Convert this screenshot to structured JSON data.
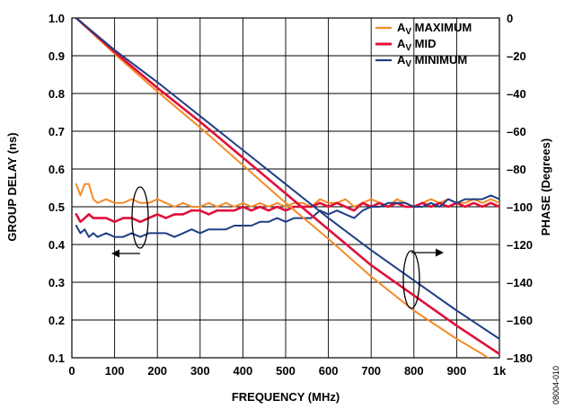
{
  "figure_id": "08004-010",
  "colors": {
    "maximum": "#f28c28",
    "mid": "#e0103a",
    "minimum": "#1f3f86",
    "grid": "#000000"
  },
  "chart_data": {
    "type": "line",
    "xlabel": "FREQUENCY (MHz)",
    "ylabel_left": "GROUP DELAY (ns)",
    "ylabel_right": "PHASE (Degrees)",
    "xlim": [
      0,
      1000
    ],
    "ylim_left": [
      0.1,
      1.0
    ],
    "ylim_right": [
      -180,
      0
    ],
    "x_ticks": [
      0,
      100,
      200,
      300,
      400,
      500,
      600,
      700,
      800,
      900,
      1000
    ],
    "x_tick_labels": [
      "0",
      "100",
      "200",
      "300",
      "400",
      "500",
      "600",
      "700",
      "800",
      "900",
      "1k"
    ],
    "y_left_ticks": [
      0.1,
      0.2,
      0.3,
      0.4,
      0.5,
      0.6,
      0.7,
      0.8,
      0.9,
      1.0
    ],
    "y_left_tick_labels": [
      "0.1",
      "0.2",
      "0.3",
      "0.4",
      "0.5",
      "0.6",
      "0.7",
      "0.8",
      "0.9",
      "1.0"
    ],
    "y_right_ticks": [
      -180,
      -160,
      -140,
      -120,
      -100,
      -80,
      -60,
      -40,
      -20,
      0
    ],
    "y_right_tick_labels": [
      "–180",
      "–160",
      "–140",
      "–120",
      "–100",
      "–80",
      "–60",
      "–40",
      "–20",
      "0"
    ],
    "grid": true,
    "legend_position": "top-right",
    "legend": [
      {
        "main": "A",
        "sub": "V",
        "rest": " MAXIMUM",
        "color_key": "maximum"
      },
      {
        "main": "A",
        "sub": "V",
        "rest": " MID",
        "color_key": "mid"
      },
      {
        "main": "A",
        "sub": "V",
        "rest": " MINIMUM",
        "color_key": "minimum"
      }
    ],
    "series": [
      {
        "color_key": "maximum",
        "axis": "left",
        "kind": "group_delay",
        "x": [
          10,
          20,
          30,
          40,
          50,
          60,
          80,
          100,
          120,
          140,
          160,
          180,
          200,
          220,
          240,
          260,
          280,
          300,
          320,
          340,
          360,
          380,
          400,
          420,
          440,
          460,
          480,
          500,
          520,
          540,
          560,
          580,
          600,
          620,
          640,
          660,
          680,
          700,
          720,
          740,
          760,
          780,
          800,
          820,
          840,
          860,
          880,
          900,
          920,
          940,
          960,
          980,
          1000
        ],
        "y": [
          0.56,
          0.53,
          0.56,
          0.56,
          0.52,
          0.51,
          0.52,
          0.51,
          0.51,
          0.52,
          0.51,
          0.51,
          0.52,
          0.51,
          0.5,
          0.51,
          0.5,
          0.5,
          0.51,
          0.5,
          0.51,
          0.5,
          0.51,
          0.5,
          0.51,
          0.5,
          0.51,
          0.5,
          0.51,
          0.51,
          0.5,
          0.52,
          0.51,
          0.51,
          0.52,
          0.5,
          0.51,
          0.52,
          0.51,
          0.5,
          0.52,
          0.51,
          0.5,
          0.51,
          0.52,
          0.51,
          0.52,
          0.51,
          0.51,
          0.52,
          0.51,
          0.52,
          0.51
        ]
      },
      {
        "color_key": "mid",
        "axis": "left",
        "kind": "group_delay",
        "x": [
          10,
          20,
          30,
          40,
          50,
          60,
          80,
          100,
          120,
          140,
          160,
          180,
          200,
          220,
          240,
          260,
          280,
          300,
          320,
          340,
          360,
          380,
          400,
          420,
          440,
          460,
          480,
          500,
          520,
          540,
          560,
          580,
          600,
          620,
          640,
          660,
          680,
          700,
          720,
          740,
          760,
          780,
          800,
          820,
          840,
          860,
          880,
          900,
          920,
          940,
          960,
          980,
          1000
        ],
        "y": [
          0.48,
          0.46,
          0.47,
          0.48,
          0.47,
          0.47,
          0.47,
          0.46,
          0.47,
          0.47,
          0.46,
          0.47,
          0.48,
          0.47,
          0.48,
          0.48,
          0.49,
          0.49,
          0.48,
          0.49,
          0.49,
          0.49,
          0.5,
          0.49,
          0.5,
          0.49,
          0.5,
          0.49,
          0.5,
          0.5,
          0.5,
          0.51,
          0.5,
          0.51,
          0.5,
          0.49,
          0.51,
          0.5,
          0.51,
          0.5,
          0.51,
          0.5,
          0.5,
          0.51,
          0.5,
          0.51,
          0.5,
          0.51,
          0.5,
          0.51,
          0.5,
          0.51,
          0.5
        ]
      },
      {
        "color_key": "minimum",
        "axis": "left",
        "kind": "group_delay",
        "x": [
          10,
          20,
          30,
          40,
          50,
          60,
          80,
          100,
          120,
          140,
          160,
          180,
          200,
          220,
          240,
          260,
          280,
          300,
          320,
          340,
          360,
          380,
          400,
          420,
          440,
          460,
          480,
          500,
          520,
          540,
          560,
          580,
          600,
          620,
          640,
          660,
          680,
          700,
          720,
          740,
          760,
          780,
          800,
          820,
          840,
          860,
          880,
          900,
          920,
          940,
          960,
          980,
          1000
        ],
        "y": [
          0.45,
          0.43,
          0.44,
          0.42,
          0.43,
          0.42,
          0.43,
          0.42,
          0.42,
          0.43,
          0.42,
          0.43,
          0.43,
          0.43,
          0.42,
          0.43,
          0.44,
          0.43,
          0.44,
          0.44,
          0.44,
          0.45,
          0.45,
          0.45,
          0.46,
          0.46,
          0.47,
          0.46,
          0.47,
          0.47,
          0.47,
          0.49,
          0.48,
          0.49,
          0.48,
          0.47,
          0.49,
          0.5,
          0.5,
          0.51,
          0.51,
          0.51,
          0.5,
          0.5,
          0.51,
          0.5,
          0.52,
          0.51,
          0.52,
          0.52,
          0.52,
          0.53,
          0.52
        ]
      },
      {
        "color_key": "maximum",
        "axis": "right",
        "kind": "phase",
        "x": [
          10,
          100,
          200,
          300,
          400,
          500,
          600,
          700,
          800,
          900,
          960,
          1000
        ],
        "y": [
          0,
          -19,
          -39,
          -58,
          -78,
          -98,
          -117,
          -137,
          -155,
          -170,
          -178,
          -184
        ]
      },
      {
        "color_key": "mid",
        "axis": "right",
        "kind": "phase",
        "x": [
          10,
          100,
          200,
          300,
          400,
          500,
          600,
          700,
          800,
          900,
          1000
        ],
        "y": [
          0,
          -18,
          -37,
          -55,
          -74,
          -93,
          -112,
          -131,
          -147,
          -163,
          -178
        ]
      },
      {
        "color_key": "minimum",
        "axis": "right",
        "kind": "phase",
        "x": [
          10,
          100,
          200,
          300,
          400,
          500,
          600,
          700,
          800,
          900,
          1000
        ],
        "y": [
          0,
          -17,
          -34,
          -52,
          -70,
          -88,
          -106,
          -123,
          -139,
          -155,
          -170
        ]
      }
    ]
  }
}
